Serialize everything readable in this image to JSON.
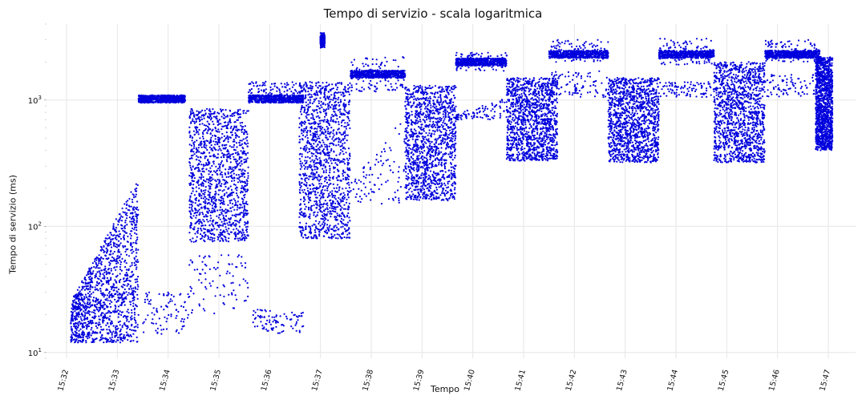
{
  "chart_data": {
    "type": "scatter",
    "title": "Tempo di servizio - scala logaritmica",
    "xlabel": "Tempo",
    "ylabel": "Tempo di servizio (ms)",
    "y_scale": "log",
    "ylim": [
      9,
      4000
    ],
    "xlim": [
      "15:32",
      "15:47"
    ],
    "grid": true,
    "marker_color": "#0000dd",
    "y_ticks": [
      10,
      100,
      1000
    ],
    "y_tick_labels": [
      "10^1",
      "10^2",
      "10^3"
    ],
    "x_ticks": [
      "15:32",
      "15:33",
      "15:34",
      "15:35",
      "15:36",
      "15:37",
      "15:38",
      "15:39",
      "15:40",
      "15:41",
      "15:42",
      "15:43",
      "15:44",
      "15:45",
      "15:46",
      "15:47"
    ],
    "clusters": [
      {
        "x_start": "15:32:05",
        "x_end": "15:33:25",
        "y_min": 12,
        "y_max": 240,
        "density": "high",
        "trend": "rising 18 to 200"
      },
      {
        "x_start": "15:33:25",
        "x_end": "15:34:20",
        "y_min": 1000,
        "y_max": 1080,
        "density": "band",
        "level": 1020
      },
      {
        "x_start": "15:33:30",
        "x_end": "15:34:25",
        "y_min": 14,
        "y_max": 30,
        "density": "sparse"
      },
      {
        "x_start": "15:34:25",
        "x_end": "15:35:35",
        "y_min": 75,
        "y_max": 850,
        "density": "high"
      },
      {
        "x_start": "15:34:25",
        "x_end": "15:35:35",
        "y_min": 20,
        "y_max": 60,
        "density": "sparse"
      },
      {
        "x_start": "15:35:35",
        "x_end": "15:36:40",
        "y_min": 1000,
        "y_max": 1400,
        "density": "band",
        "level": 1020
      },
      {
        "x_start": "15:35:40",
        "x_end": "15:36:40",
        "y_min": 14,
        "y_max": 22,
        "density": "sparse"
      },
      {
        "x_start": "15:36:35",
        "x_end": "15:37:35",
        "y_min": 80,
        "y_max": 1400,
        "density": "high"
      },
      {
        "x_start": "15:37:00",
        "x_end": "15:37:05",
        "y_min": 2600,
        "y_max": 3400,
        "density": "band",
        "level": 3000
      },
      {
        "x_start": "15:37:35",
        "x_end": "15:38:40",
        "y_min": 1150,
        "y_max": 2200,
        "density": "band",
        "level": 1600
      },
      {
        "x_start": "15:37:35",
        "x_end": "15:38:40",
        "y_min": 150,
        "y_max": 750,
        "density": "sparse",
        "trend": "rising"
      },
      {
        "x_start": "15:38:40",
        "x_end": "15:39:40",
        "y_min": 160,
        "y_max": 1300,
        "density": "high"
      },
      {
        "x_start": "15:39:40",
        "x_end": "15:40:40",
        "y_min": 1700,
        "y_max": 2400,
        "density": "band",
        "level": 2000
      },
      {
        "x_start": "15:39:40",
        "x_end": "15:40:40",
        "y_min": 700,
        "y_max": 1050,
        "density": "sparse",
        "trend": "rising"
      },
      {
        "x_start": "15:40:40",
        "x_end": "15:41:40",
        "y_min": 330,
        "y_max": 1500,
        "density": "high"
      },
      {
        "x_start": "15:41:30",
        "x_end": "15:42:40",
        "y_min": 2000,
        "y_max": 3000,
        "density": "band",
        "level": 2300
      },
      {
        "x_start": "15:41:30",
        "x_end": "15:42:40",
        "y_min": 1050,
        "y_max": 1700,
        "density": "sparse"
      },
      {
        "x_start": "15:42:40",
        "x_end": "15:43:40",
        "y_min": 320,
        "y_max": 1500,
        "density": "high"
      },
      {
        "x_start": "15:43:40",
        "x_end": "15:44:45",
        "y_min": 1900,
        "y_max": 3100,
        "density": "band",
        "level": 2300
      },
      {
        "x_start": "15:43:40",
        "x_end": "15:44:45",
        "y_min": 1050,
        "y_max": 1400,
        "density": "sparse"
      },
      {
        "x_start": "15:44:45",
        "x_end": "15:45:45",
        "y_min": 320,
        "y_max": 2000,
        "density": "high"
      },
      {
        "x_start": "15:45:45",
        "x_end": "15:46:50",
        "y_min": 2000,
        "y_max": 3000,
        "density": "band",
        "level": 2300
      },
      {
        "x_start": "15:45:45",
        "x_end": "15:46:50",
        "y_min": 1050,
        "y_max": 1600,
        "density": "sparse"
      },
      {
        "x_start": "15:46:45",
        "x_end": "15:47:05",
        "y_min": 400,
        "y_max": 2200,
        "density": "high"
      }
    ]
  }
}
